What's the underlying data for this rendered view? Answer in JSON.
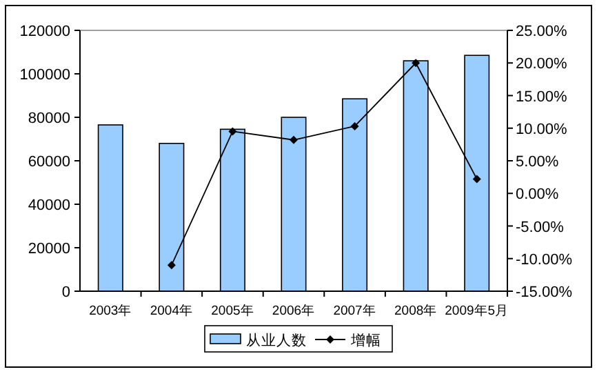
{
  "chart_data": {
    "type": "bar",
    "categories": [
      "2003年",
      "2004年",
      "2005年",
      "2006年",
      "2007年",
      "2008年",
      "2009年5月"
    ],
    "series": [
      {
        "name": "从业人数",
        "color": "#99ccff",
        "values": [
          76500,
          68000,
          74500,
          80000,
          88500,
          106000,
          108500
        ]
      },
      {
        "name": "增幅",
        "type": "line",
        "axis": "y2",
        "color": "#000000",
        "marker": "diamond",
        "values": [
          null,
          -11,
          9.5,
          8.2,
          10.3,
          20,
          2.2
        ]
      }
    ],
    "ylim": [
      0,
      120000
    ],
    "yticks": [
      0,
      20000,
      40000,
      60000,
      80000,
      100000,
      120000
    ],
    "y2lim": [
      -15,
      25
    ],
    "y2ticks": [
      {
        "value": -15,
        "label": "-15.00%"
      },
      {
        "value": -10,
        "label": "-10.00%"
      },
      {
        "value": -5,
        "label": "-5.00%"
      },
      {
        "value": 0,
        "label": "0.00%"
      },
      {
        "value": 5,
        "label": "5.00%"
      },
      {
        "value": 10,
        "label": "10.00%"
      },
      {
        "value": 15,
        "label": "15.00%"
      },
      {
        "value": 20,
        "label": "20.00%"
      },
      {
        "value": 25,
        "label": "25.00%"
      }
    ],
    "legend": "bottom"
  }
}
